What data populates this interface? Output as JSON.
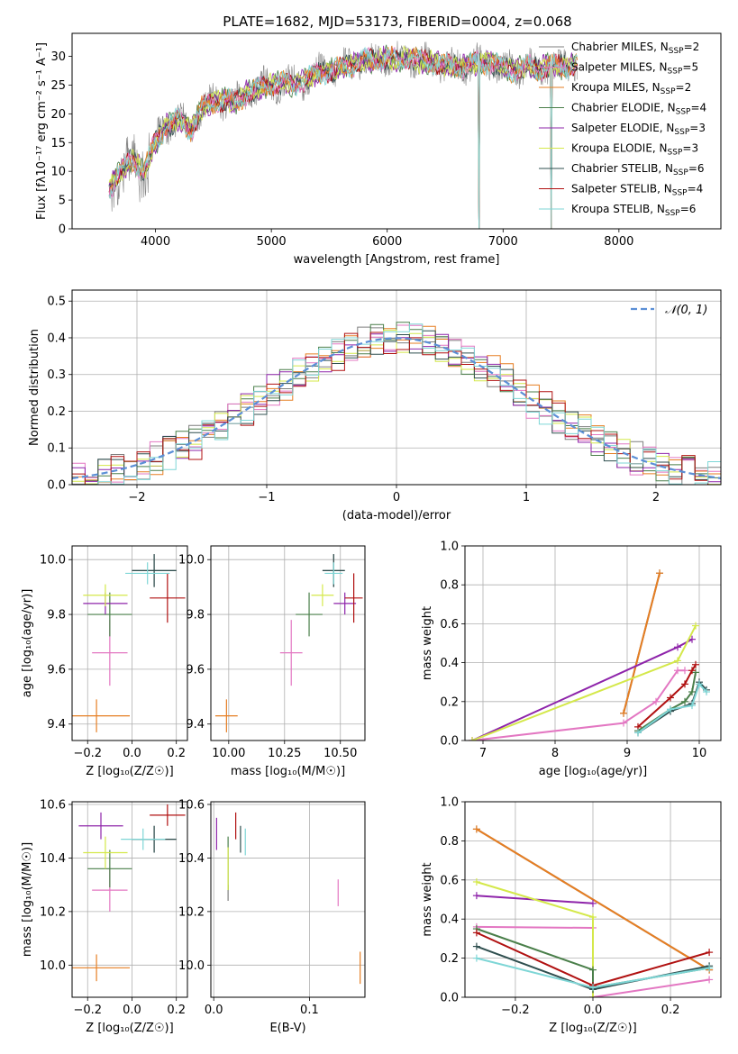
{
  "figure": {
    "title": "PLATE=1682, MJD=53173, FIBERID=0004, z=0.068"
  },
  "colors": {
    "grid": "#b0b0b0",
    "normal_curve": "#5b8fd6"
  },
  "chart_data": [
    {
      "id": "spectrum",
      "type": "line",
      "title": "PLATE=1682, MJD=53173, FIBERID=0004, z=0.068",
      "xlabel": "wavelength [Angstrom, rest frame]",
      "ylabel": "Flux [fλ10⁻¹⁷ erg cm⁻² s⁻¹ A⁻¹]",
      "xlim": [
        3280,
        8880
      ],
      "ylim": [
        0,
        34
      ],
      "xticks": [
        4000,
        5000,
        6000,
        7000,
        8000
      ],
      "yticks": [
        0,
        5,
        10,
        15,
        20,
        25,
        30
      ],
      "grid": false,
      "legend_position": "right",
      "continuum": {
        "x": [
          3600,
          3700,
          3800,
          3900,
          4000,
          4100,
          4200,
          4300,
          4400,
          4500,
          4600,
          4700,
          4800,
          4900,
          5000,
          5100,
          5200,
          5300,
          5400,
          5500,
          5600,
          5700,
          5800,
          5900,
          6000,
          6100,
          6200,
          6300,
          6400,
          6500,
          6600,
          6700,
          6800,
          6900,
          7000,
          7100,
          7200,
          7300,
          7400,
          7500,
          7600
        ],
        "y": [
          7,
          10,
          12,
          10,
          15,
          18,
          19,
          17,
          21,
          22,
          22.5,
          22,
          24,
          24.5,
          25,
          25.5,
          25,
          26,
          27,
          27.5,
          28,
          28.5,
          29.5,
          29,
          30,
          29,
          30,
          29,
          29,
          28.5,
          28,
          28.5,
          29,
          29,
          28,
          27.5,
          28.5,
          27.5,
          28.5,
          28,
          28.5
        ]
      },
      "series": [
        {
          "name": "Chabrier MILES, N_SSP=2",
          "color": "#7f7f7f"
        },
        {
          "name": "Salpeter MILES, N_SSP=5",
          "color": "#e377c2"
        },
        {
          "name": "Kroupa MILES, N_SSP=2",
          "color": "#e67e22"
        },
        {
          "name": "Chabrier ELODIE, N_SSP=4",
          "color": "#4a7f4a"
        },
        {
          "name": "Salpeter ELODIE, N_SSP=3",
          "color": "#8e24aa"
        },
        {
          "name": "Kroupa ELODIE, N_SSP=3",
          "color": "#d4e84a"
        },
        {
          "name": "Chabrier STELIB, N_SSP=6",
          "color": "#2f4f4f"
        },
        {
          "name": "Salpeter STELIB, N_SSP=4",
          "color": "#b01010"
        },
        {
          "name": "Kroupa STELIB, N_SSP=6",
          "color": "#7ed6d6"
        }
      ],
      "legend": [
        {
          "pre": "Chabrier MILES, N",
          "sub": "SSP",
          "post": "=2",
          "color": "#7f7f7f"
        },
        {
          "pre": "Salpeter MILES, N",
          "sub": "SSP",
          "post": "=5",
          "color": "#e377c2"
        },
        {
          "pre": "Kroupa MILES, N",
          "sub": "SSP",
          "post": "=2",
          "color": "#e67e22"
        },
        {
          "pre": "Chabrier ELODIE, N",
          "sub": "SSP",
          "post": "=4",
          "color": "#4a7f4a"
        },
        {
          "pre": "Salpeter ELODIE, N",
          "sub": "SSP",
          "post": "=3",
          "color": "#8e24aa"
        },
        {
          "pre": "Kroupa ELODIE, N",
          "sub": "SSP",
          "post": "=3",
          "color": "#d4e84a"
        },
        {
          "pre": "Chabrier STELIB, N",
          "sub": "SSP",
          "post": "=6",
          "color": "#2f4f4f"
        },
        {
          "pre": "Salpeter STELIB, N",
          "sub": "SSP",
          "post": "=4",
          "color": "#b01010"
        },
        {
          "pre": "Kroupa STELIB, N",
          "sub": "SSP",
          "post": "=6",
          "color": "#7ed6d6"
        }
      ]
    },
    {
      "id": "residuals",
      "type": "histogram",
      "xlabel": "(data-model)/error",
      "ylabel": "Normed distribution",
      "xlim": [
        -2.5,
        2.5
      ],
      "ylim": [
        0,
        0.53
      ],
      "xticks": [
        -2,
        -1,
        0,
        1,
        2
      ],
      "yticks": [
        0.0,
        0.1,
        0.2,
        0.3,
        0.4,
        0.5
      ],
      "grid": true,
      "legend_position": "top-right",
      "legend_label": "𝒩(0, 1)",
      "bin_width": 0.1,
      "normal_pdf": {
        "mean": 0,
        "sigma": 1
      }
    },
    {
      "id": "age_vs_Z",
      "type": "errorbar",
      "xlabel": "Z [log₁₀(Z/Z☉)]",
      "ylabel": "age  [log₁₀(age/yr)]",
      "xlim": [
        -0.27,
        0.25
      ],
      "ylim": [
        9.34,
        10.05
      ],
      "xticks": [
        -0.2,
        0.0,
        0.2
      ],
      "yticks": [
        9.4,
        9.6,
        9.8,
        10.0
      ],
      "grid": true,
      "points": [
        {
          "series": 0,
          "x": 0.1,
          "y": 9.96,
          "xerr": 0.1,
          "yerr": 0.06
        },
        {
          "series": 1,
          "x": -0.1,
          "y": 9.66,
          "xerr": 0.08,
          "yerr": 0.12
        },
        {
          "series": 2,
          "x": -0.16,
          "y": 9.43,
          "xerr": 0.15,
          "yerr": 0.06
        },
        {
          "series": 3,
          "x": -0.1,
          "y": 9.8,
          "xerr": 0.1,
          "yerr": 0.08
        },
        {
          "series": 4,
          "x": -0.12,
          "y": 9.84,
          "xerr": 0.1,
          "yerr": 0.04
        },
        {
          "series": 5,
          "x": -0.12,
          "y": 9.87,
          "xerr": 0.1,
          "yerr": 0.04
        },
        {
          "series": 6,
          "x": 0.1,
          "y": 9.96,
          "xerr": 0.1,
          "yerr": 0.06
        },
        {
          "series": 7,
          "x": 0.16,
          "y": 9.86,
          "xerr": 0.08,
          "yerr": 0.09
        },
        {
          "series": 8,
          "x": 0.07,
          "y": 9.95,
          "xerr": 0.1,
          "yerr": 0.04
        }
      ]
    },
    {
      "id": "age_vs_mass",
      "type": "errorbar",
      "xlabel": "mass [log₁₀(M/M☉)]",
      "ylabel": "",
      "xlim": [
        9.92,
        10.61
      ],
      "ylim": [
        9.34,
        10.05
      ],
      "xticks": [
        10.0,
        10.25,
        10.5
      ],
      "xticklabels": [
        "10.00",
        "10.25",
        "10.50"
      ],
      "yticks": [
        9.4,
        9.6,
        9.8,
        10.0
      ],
      "grid": true,
      "points": [
        {
          "series": 0,
          "x": 10.47,
          "y": 9.96,
          "xerr": 0.05,
          "yerr": 0.06
        },
        {
          "series": 1,
          "x": 10.28,
          "y": 9.66,
          "xerr": 0.05,
          "yerr": 0.12
        },
        {
          "series": 2,
          "x": 9.99,
          "y": 9.43,
          "xerr": 0.05,
          "yerr": 0.06
        },
        {
          "series": 3,
          "x": 10.36,
          "y": 9.8,
          "xerr": 0.06,
          "yerr": 0.08
        },
        {
          "series": 4,
          "x": 10.52,
          "y": 9.84,
          "xerr": 0.05,
          "yerr": 0.04
        },
        {
          "series": 5,
          "x": 10.42,
          "y": 9.87,
          "xerr": 0.05,
          "yerr": 0.04
        },
        {
          "series": 6,
          "x": 10.47,
          "y": 9.96,
          "xerr": 0.05,
          "yerr": 0.06
        },
        {
          "series": 7,
          "x": 10.56,
          "y": 9.86,
          "xerr": 0.04,
          "yerr": 0.09
        },
        {
          "series": 8,
          "x": 10.47,
          "y": 9.95,
          "xerr": 0.04,
          "yerr": 0.04
        }
      ]
    },
    {
      "id": "weight_vs_age",
      "type": "line",
      "xlabel": "age  [log₁₀(age/yr)]",
      "ylabel": "mass weight",
      "xlim": [
        6.75,
        10.3
      ],
      "ylim": [
        0,
        1.0
      ],
      "xticks": [
        7,
        8,
        9,
        10
      ],
      "yticks": [
        0.0,
        0.2,
        0.4,
        0.6,
        0.8,
        1.0
      ],
      "grid": true,
      "lines": [
        {
          "series": 0,
          "x": [
            8.95,
            9.45
          ],
          "y": [
            0.14,
            0.86
          ]
        },
        {
          "series": 2,
          "x": [
            8.95,
            9.45
          ],
          "y": [
            0.14,
            0.86
          ]
        },
        {
          "series": 1,
          "x": [
            6.85,
            8.95,
            9.4,
            9.7,
            9.8
          ],
          "y": [
            0.0,
            0.09,
            0.2,
            0.36,
            0.36
          ]
        },
        {
          "series": 4,
          "x": [
            6.85,
            9.7,
            9.9
          ],
          "y": [
            0.0,
            0.48,
            0.52
          ]
        },
        {
          "series": 5,
          "x": [
            6.85,
            9.7,
            9.95
          ],
          "y": [
            0.0,
            0.41,
            0.59
          ]
        },
        {
          "series": 3,
          "x": [
            9.15,
            9.6,
            9.8,
            9.9,
            9.95
          ],
          "y": [
            0.05,
            0.16,
            0.2,
            0.25,
            0.35
          ]
        },
        {
          "series": 7,
          "x": [
            9.15,
            9.6,
            9.8,
            9.9,
            9.95
          ],
          "y": [
            0.07,
            0.22,
            0.29,
            0.36,
            0.39
          ]
        },
        {
          "series": 6,
          "x": [
            9.15,
            9.6,
            9.9,
            10.0,
            10.1
          ],
          "y": [
            0.04,
            0.15,
            0.19,
            0.3,
            0.26
          ]
        },
        {
          "series": 8,
          "x": [
            9.15,
            9.6,
            9.9,
            10.0,
            10.1
          ],
          "y": [
            0.04,
            0.16,
            0.18,
            0.29,
            0.25
          ]
        }
      ]
    },
    {
      "id": "mass_vs_Z",
      "type": "errorbar",
      "xlabel": "Z [log₁₀(Z/Z☉)]",
      "ylabel": "mass [log₁₀(M/M☉)]",
      "xlim": [
        -0.27,
        0.25
      ],
      "ylim": [
        9.88,
        10.61
      ],
      "xticks": [
        -0.2,
        0.0,
        0.2
      ],
      "yticks": [
        10.0,
        10.2,
        10.4,
        10.6
      ],
      "grid": true,
      "points": [
        {
          "series": 0,
          "x": 0.1,
          "y": 10.47,
          "xerr": 0.1,
          "yerr": 0.05
        },
        {
          "series": 1,
          "x": -0.1,
          "y": 10.28,
          "xerr": 0.08,
          "yerr": 0.08
        },
        {
          "series": 2,
          "x": -0.16,
          "y": 9.99,
          "xerr": 0.15,
          "yerr": 0.05
        },
        {
          "series": 3,
          "x": -0.1,
          "y": 10.36,
          "xerr": 0.1,
          "yerr": 0.07
        },
        {
          "series": 4,
          "x": -0.14,
          "y": 10.52,
          "xerr": 0.1,
          "yerr": 0.05
        },
        {
          "series": 5,
          "x": -0.12,
          "y": 10.42,
          "xerr": 0.1,
          "yerr": 0.06
        },
        {
          "series": 6,
          "x": 0.1,
          "y": 10.47,
          "xerr": 0.1,
          "yerr": 0.05
        },
        {
          "series": 7,
          "x": 0.16,
          "y": 10.56,
          "xerr": 0.08,
          "yerr": 0.04
        },
        {
          "series": 8,
          "x": 0.05,
          "y": 10.47,
          "xerr": 0.1,
          "yerr": 0.04
        }
      ]
    },
    {
      "id": "mass_vs_ebv",
      "type": "errorbar",
      "xlabel": "E(B-V)",
      "ylabel": "",
      "xlim": [
        -0.003,
        0.158
      ],
      "ylim": [
        9.88,
        10.61
      ],
      "xticks": [
        0.0,
        0.1
      ],
      "yticks": [
        10.0,
        10.2,
        10.4,
        10.6
      ],
      "grid": true,
      "points": [
        {
          "series": 0,
          "x": 0.015,
          "y": 10.27,
          "xerr": 0,
          "yerr": 0.03
        },
        {
          "series": 1,
          "x": 0.13,
          "y": 10.27,
          "xerr": 0,
          "yerr": 0.05
        },
        {
          "series": 2,
          "x": 0.153,
          "y": 9.99,
          "xerr": 0,
          "yerr": 0.06
        },
        {
          "series": 3,
          "x": 0.015,
          "y": 10.38,
          "xerr": 0,
          "yerr": 0.1
        },
        {
          "series": 4,
          "x": 0.003,
          "y": 10.49,
          "xerr": 0,
          "yerr": 0.06
        },
        {
          "series": 5,
          "x": 0.015,
          "y": 10.36,
          "xerr": 0,
          "yerr": 0.08
        },
        {
          "series": 6,
          "x": 0.028,
          "y": 10.47,
          "xerr": 0,
          "yerr": 0.05
        },
        {
          "series": 7,
          "x": 0.023,
          "y": 10.52,
          "xerr": 0,
          "yerr": 0.05
        },
        {
          "series": 8,
          "x": 0.033,
          "y": 10.46,
          "xerr": 0,
          "yerr": 0.05
        }
      ]
    },
    {
      "id": "weight_vs_Z",
      "type": "line",
      "xlabel": "Z [log₁₀(Z/Z☉)]",
      "ylabel": "mass weight",
      "xlim": [
        -0.33,
        0.33
      ],
      "ylim": [
        0,
        1.0
      ],
      "xticks": [
        -0.2,
        0.0,
        0.2
      ],
      "yticks": [
        0.0,
        0.2,
        0.4,
        0.6,
        0.8,
        1.0
      ],
      "grid": true,
      "lines": [
        {
          "series": 0,
          "x": [
            -0.3,
            0.3
          ],
          "y": [
            0.86,
            0.14
          ]
        },
        {
          "series": 2,
          "x": [
            -0.3,
            0.3
          ],
          "y": [
            0.86,
            0.14
          ]
        },
        {
          "series": 1,
          "x": [
            -0.3,
            0.0,
            0.0,
            0.3
          ],
          "y": [
            0.36,
            0.355,
            0.0,
            0.09
          ]
        },
        {
          "series": 4,
          "x": [
            -0.3,
            0.0
          ],
          "y": [
            0.52,
            0.48
          ]
        },
        {
          "series": 5,
          "x": [
            -0.3,
            0.0,
            0.0
          ],
          "y": [
            0.59,
            0.41,
            0.0
          ]
        },
        {
          "series": 3,
          "x": [
            -0.3,
            0.0,
            0.0,
            0.3
          ],
          "y": [
            0.35,
            0.14,
            0.05,
            0.15
          ]
        },
        {
          "series": 7,
          "x": [
            -0.3,
            0.0,
            0.3
          ],
          "y": [
            0.33,
            0.06,
            0.23
          ]
        },
        {
          "series": 6,
          "x": [
            -0.3,
            0.0,
            0.3
          ],
          "y": [
            0.26,
            0.04,
            0.16
          ]
        },
        {
          "series": 8,
          "x": [
            -0.3,
            0.0,
            0.3
          ],
          "y": [
            0.2,
            0.05,
            0.15
          ]
        }
      ]
    }
  ]
}
